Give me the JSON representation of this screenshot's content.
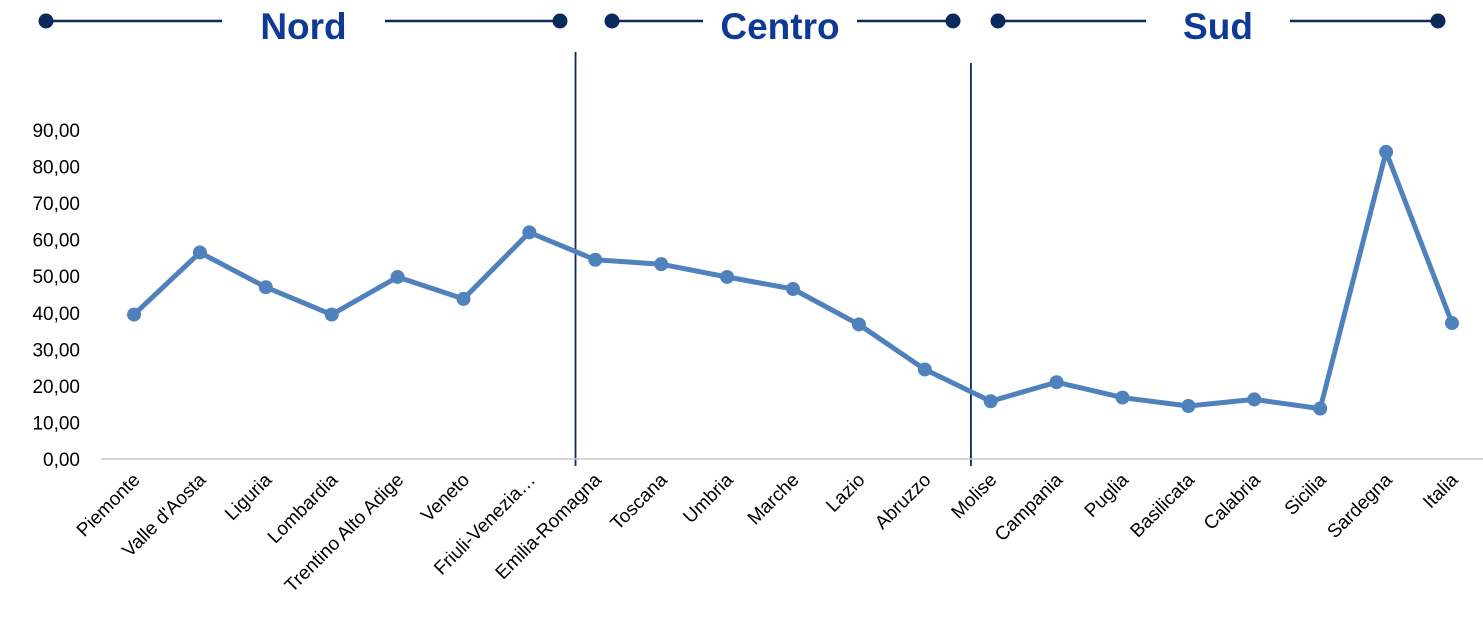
{
  "colors": {
    "series": "#4f81bd",
    "group": "#0a2a5c",
    "group_title": "#0e3a96",
    "axis": "#c8c8c8"
  },
  "groups": [
    {
      "label": "Nord",
      "from": 0,
      "to": 6
    },
    {
      "label": "Centro",
      "from": 7,
      "to": 12
    },
    {
      "label": "Sud",
      "from": 13,
      "to": 20
    }
  ],
  "chart_data": {
    "type": "line",
    "categories": [
      "Piemonte",
      "Valle d'Aosta",
      "Liguria",
      "Lombardia",
      "Trentino Alto Adige",
      "Veneto",
      "Friuli-Venezia…",
      "Emilia-Romagna",
      "Toscana",
      "Umbria",
      "Marche",
      "Lazio",
      "Abruzzo",
      "Molise",
      "Campania",
      "Puglia",
      "Basilicata",
      "Calabria",
      "Sicilia",
      "Sardegna",
      "Italia"
    ],
    "series": [
      {
        "values": [
          39.5,
          56.5,
          47.0,
          39.5,
          49.8,
          43.8,
          62.0,
          54.5,
          53.3,
          49.8,
          46.5,
          36.8,
          24.5,
          15.8,
          21.0,
          16.8,
          14.5,
          16.3,
          13.8,
          84.0,
          37.2
        ]
      }
    ],
    "ylim": [
      0,
      90
    ],
    "yticks": [
      "0,00",
      "10,00",
      "20,00",
      "30,00",
      "40,00",
      "50,00",
      "60,00",
      "70,00",
      "80,00",
      "90,00"
    ],
    "grid": false,
    "legend": "none"
  }
}
